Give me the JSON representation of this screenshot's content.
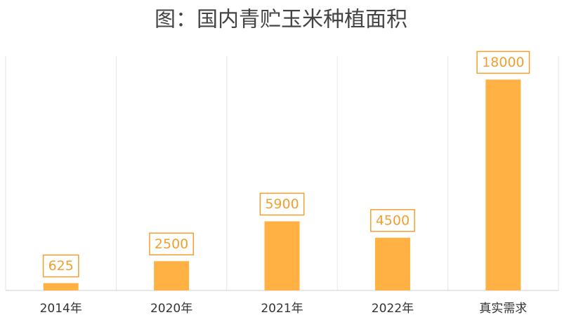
{
  "chart_data": {
    "type": "bar",
    "title": "图：国内青贮玉米种植面积",
    "categories": [
      "2014年",
      "2020年",
      "2021年",
      "2022年",
      "真实需求"
    ],
    "values": [
      625,
      2500,
      5900,
      4500,
      18000
    ],
    "color": "#ffb143",
    "label_color": "#f0a030",
    "ylim": [
      0,
      20000
    ],
    "grid": true
  }
}
